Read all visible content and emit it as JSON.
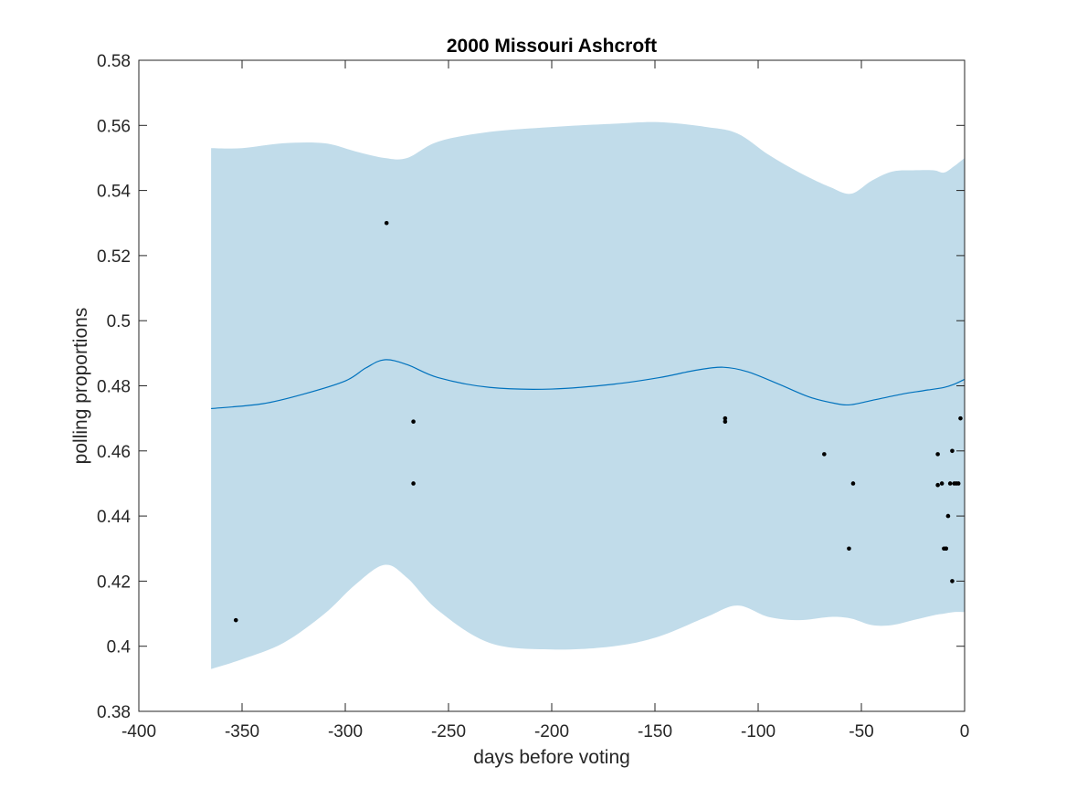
{
  "chart_data": {
    "type": "line",
    "title": "2000 Missouri Ashcroft",
    "xlabel": "days before voting",
    "ylabel": "polling proportions",
    "xlim": [
      -400,
      0
    ],
    "ylim": [
      0.38,
      0.58
    ],
    "xticks": [
      -400,
      -350,
      -300,
      -250,
      -200,
      -150,
      -100,
      -50,
      0
    ],
    "xtick_labels": [
      "-400",
      "-350",
      "-300",
      "-250",
      "-200",
      "-150",
      "-100",
      "-50",
      "0"
    ],
    "yticks": [
      0.38,
      0.4,
      0.42,
      0.44,
      0.46,
      0.48,
      0.5,
      0.52,
      0.54,
      0.56,
      0.58
    ],
    "ytick_labels": [
      "0.38",
      "0.4",
      "0.42",
      "0.44",
      "0.46",
      "0.48",
      "0.5",
      "0.52",
      "0.54",
      "0.56",
      "0.58"
    ],
    "grid": false,
    "colors": {
      "band": "#c1dcea",
      "line": "#0072bd",
      "points": "#000000",
      "axes": "#262626"
    },
    "band": {
      "x": [
        -365,
        -350,
        -330,
        -310,
        -295,
        -281,
        -270,
        -255,
        -230,
        -200,
        -170,
        -148,
        -125,
        -110,
        -95,
        -80,
        -65,
        -55,
        -45,
        -35,
        -25,
        -15,
        -10,
        -5,
        0
      ],
      "upper": [
        0.553,
        0.553,
        0.5545,
        0.5545,
        0.552,
        0.55,
        0.55,
        0.555,
        0.558,
        0.5595,
        0.5605,
        0.561,
        0.5595,
        0.5575,
        0.551,
        0.5455,
        0.541,
        0.539,
        0.543,
        0.5458,
        0.5462,
        0.5462,
        0.5455,
        0.5475,
        0.55
      ],
      "lower": [
        0.393,
        0.396,
        0.401,
        0.41,
        0.419,
        0.425,
        0.421,
        0.411,
        0.401,
        0.399,
        0.4,
        0.403,
        0.409,
        0.4125,
        0.409,
        0.408,
        0.409,
        0.4085,
        0.4065,
        0.4065,
        0.408,
        0.4095,
        0.41,
        0.4105,
        0.4105
      ]
    },
    "series": [
      {
        "x": [
          -365,
          -340,
          -320,
          -300,
          -290,
          -281,
          -270,
          -255,
          -230,
          -200,
          -170,
          -148,
          -130,
          -117,
          -105,
          -90,
          -75,
          -62,
          -55,
          -45,
          -30,
          -20,
          -10,
          -5,
          0
        ],
        "y": [
          0.473,
          0.4745,
          0.4775,
          0.4815,
          0.4855,
          0.488,
          0.4865,
          0.4825,
          0.4795,
          0.479,
          0.4805,
          0.4825,
          0.4848,
          0.4857,
          0.4843,
          0.4805,
          0.4765,
          0.4745,
          0.4742,
          0.4755,
          0.4775,
          0.4785,
          0.4795,
          0.4805,
          0.482
        ]
      }
    ],
    "points": {
      "x": [
        -353,
        -280,
        -267,
        -267,
        -116,
        -116,
        -68,
        -54,
        -56,
        -13,
        -13,
        -11,
        -10,
        -9,
        -9,
        -8,
        -7,
        -6,
        -6,
        -5,
        -4,
        -3,
        -2
      ],
      "y": [
        0.408,
        0.53,
        0.469,
        0.45,
        0.47,
        0.469,
        0.459,
        0.45,
        0.43,
        0.459,
        0.4495,
        0.45,
        0.43,
        0.43,
        0.43,
        0.44,
        0.45,
        0.46,
        0.42,
        0.45,
        0.45,
        0.45,
        0.47
      ]
    }
  }
}
